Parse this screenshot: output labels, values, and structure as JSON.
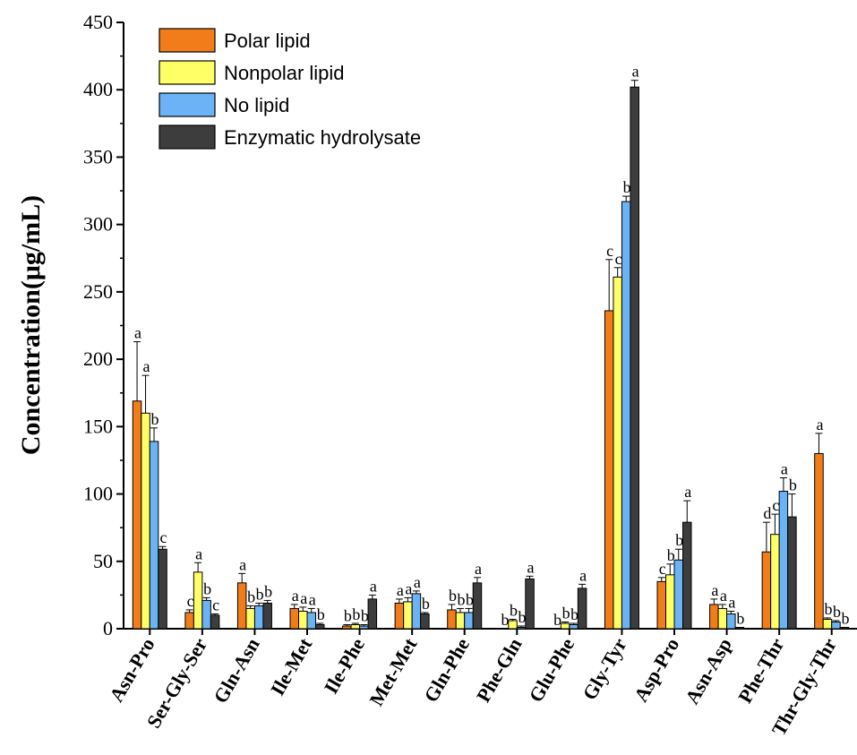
{
  "chart_data": {
    "type": "bar",
    "title": "",
    "xlabel": "",
    "ylabel": "Concentration(μg/mL)",
    "ylim": [
      0,
      450
    ],
    "yticks": [
      0,
      50,
      100,
      150,
      200,
      250,
      300,
      350,
      400,
      450
    ],
    "legend_position": "top-left",
    "grid": false,
    "categories": [
      "Asn-Pro",
      "Ser-Gly-Ser",
      "Gln-Asn",
      "Ile-Met",
      "Ile-Phe",
      "Met-Met",
      "Gln-Phe",
      "Phe-Gln",
      "Glu-Phe",
      "Gly-Tyr",
      "Asp-Pro",
      "Asn-Asp",
      "Phe-Thr",
      "Thr-Gly-Thr"
    ],
    "series": [
      {
        "name": "Polar lipid",
        "color": "#F07D1A",
        "values": [
          169,
          12,
          34,
          15,
          2,
          19,
          14,
          0,
          0,
          236,
          35,
          18,
          57,
          130
        ],
        "errors": [
          44,
          2,
          7,
          3,
          1,
          3,
          4,
          0,
          0,
          38,
          3,
          4,
          22,
          15
        ],
        "sig": [
          "a",
          "c",
          "a",
          "a",
          "b",
          "a",
          "b",
          "b",
          "b",
          "c",
          "c",
          "a",
          "d",
          "a"
        ]
      },
      {
        "name": "Nonpolar lipid",
        "color": "#FFFF66",
        "values": [
          160,
          42,
          15,
          13,
          3,
          20,
          12,
          6,
          4,
          261,
          40,
          15,
          70,
          7
        ],
        "errors": [
          28,
          7,
          2,
          3,
          1,
          3,
          3,
          1,
          1,
          7,
          8,
          3,
          15,
          1
        ],
        "sig": [
          "a",
          "a",
          "b",
          "a",
          "b",
          "a",
          "b",
          "b",
          "b",
          "c",
          "b",
          "a",
          "c",
          "b"
        ]
      },
      {
        "name": "No lipid",
        "color": "#6BB3F5",
        "values": [
          139,
          21,
          17,
          12,
          2,
          26,
          12,
          1,
          3,
          317,
          51,
          11,
          102,
          5
        ],
        "errors": [
          10,
          2,
          2,
          3,
          1,
          2,
          3,
          1,
          1,
          4,
          8,
          2,
          10,
          1
        ],
        "sig": [
          "b",
          "b",
          "b",
          "a",
          "b",
          "a",
          "b",
          "b",
          "b",
          "b",
          "b",
          "a",
          "a",
          "b"
        ]
      },
      {
        "name": "Enzymatic hydrolysate",
        "color": "#3D3D3D",
        "values": [
          59,
          10,
          19,
          3,
          22,
          11,
          34,
          37,
          30,
          402,
          79,
          1,
          83,
          1
        ],
        "errors": [
          2,
          1,
          2,
          1,
          3,
          1,
          4,
          2,
          3,
          5,
          16,
          0,
          17,
          0
        ],
        "sig": [
          "c",
          "c",
          "b",
          "b",
          "a",
          "b",
          "a",
          "a",
          "a",
          "a",
          "a",
          "b",
          "b",
          "b"
        ]
      }
    ]
  }
}
